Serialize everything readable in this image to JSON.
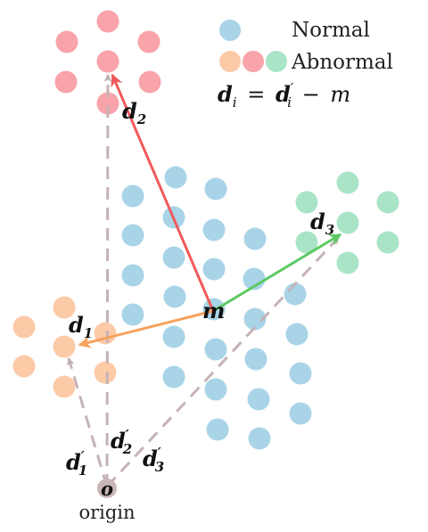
{
  "legend": {
    "normal_label": "Normal",
    "abnormal_label": "Abnormal"
  },
  "equation": {
    "lhs": "d",
    "lhs_sub": "i",
    "equals": "=",
    "rhs_d": "d",
    "rhs_prime": "′",
    "rhs_sub": "i",
    "minus": "−",
    "rhs_m": "m"
  },
  "labels": {
    "d1": {
      "base": "d",
      "sub": "1"
    },
    "d2": {
      "base": "d",
      "sub": "2"
    },
    "d3": {
      "base": "d",
      "sub": "3"
    },
    "d1_prime": {
      "base": "d",
      "prime": "′",
      "sub": "1"
    },
    "d2_prime": {
      "base": "d",
      "prime": "′",
      "sub": "2"
    },
    "d3_prime": {
      "base": "d",
      "prime": "′",
      "sub": "3"
    },
    "mean": "m",
    "origin_symbol": "o",
    "origin_word": "origin"
  },
  "colors": {
    "normal": "#a9d4e8",
    "abnormal_1": "#fdcaa8",
    "abnormal_2": "#f9a3aa",
    "abnormal_3": "#a9e4c7",
    "arrow_1": "#f7a25d",
    "arrow_2": "#f05a5a",
    "arrow_3": "#5cc964",
    "dashed": "#c5b3b5",
    "origin": "#c9b6b6"
  }
}
